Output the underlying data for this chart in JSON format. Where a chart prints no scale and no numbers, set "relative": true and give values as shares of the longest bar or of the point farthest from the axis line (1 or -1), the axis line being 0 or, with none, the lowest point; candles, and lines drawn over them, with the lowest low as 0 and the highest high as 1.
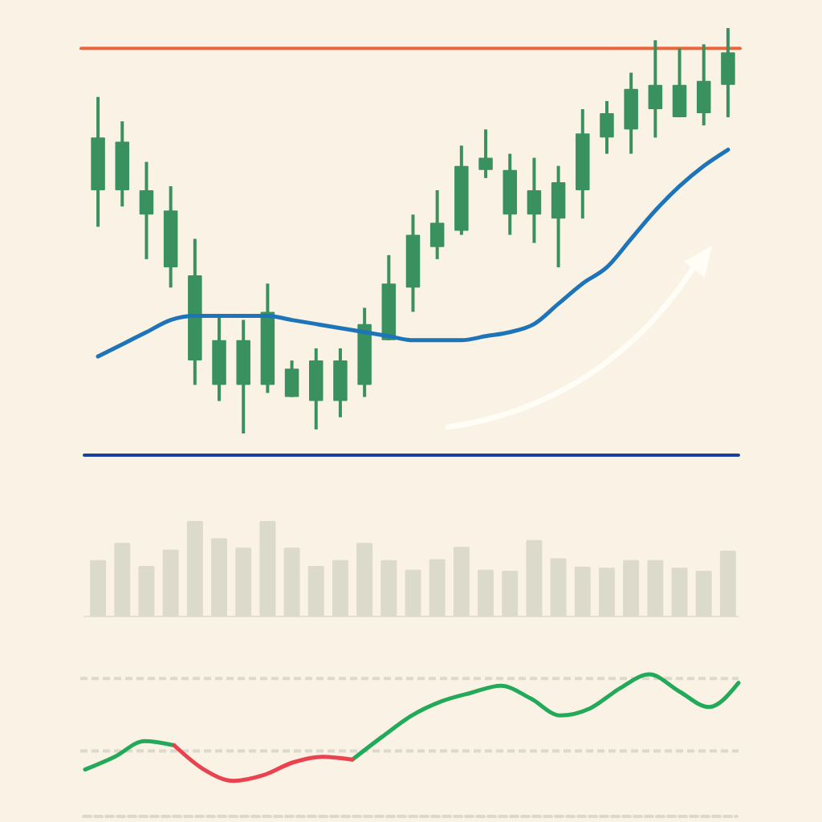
{
  "chart_data": [
    {
      "type": "candlestick",
      "relative": true,
      "color": "#3a9160",
      "categories": [
        null,
        null,
        null,
        null,
        null,
        null,
        null,
        null,
        null,
        null,
        null,
        null,
        null,
        null,
        null,
        null,
        null,
        null,
        null,
        null,
        null,
        null,
        null,
        null,
        null,
        null,
        null
      ],
      "ohlc": [
        [
          0.6,
          0.83,
          0.51,
          0.73
        ],
        [
          0.6,
          0.77,
          0.56,
          0.72
        ],
        [
          0.54,
          0.67,
          0.43,
          0.6
        ],
        [
          0.41,
          0.61,
          0.36,
          0.55
        ],
        [
          0.18,
          0.48,
          0.12,
          0.39
        ],
        [
          0.12,
          0.29,
          0.08,
          0.23
        ],
        [
          0.12,
          0.28,
          0.0,
          0.23
        ],
        [
          0.12,
          0.37,
          0.1,
          0.3
        ],
        [
          0.09,
          0.18,
          0.09,
          0.16
        ],
        [
          0.08,
          0.21,
          0.01,
          0.18
        ],
        [
          0.08,
          0.21,
          0.04,
          0.18
        ],
        [
          0.12,
          0.31,
          0.09,
          0.27
        ],
        [
          0.23,
          0.44,
          0.23,
          0.37
        ],
        [
          0.36,
          0.54,
          0.3,
          0.49
        ],
        [
          0.46,
          0.6,
          0.43,
          0.52
        ],
        [
          0.5,
          0.71,
          0.49,
          0.66
        ],
        [
          0.65,
          0.75,
          0.63,
          0.68
        ],
        [
          0.54,
          0.69,
          0.49,
          0.65
        ],
        [
          0.54,
          0.68,
          0.47,
          0.6
        ],
        [
          0.53,
          0.66,
          0.41,
          0.62
        ],
        [
          0.6,
          0.8,
          0.53,
          0.74
        ],
        [
          0.73,
          0.82,
          0.69,
          0.79
        ],
        [
          0.75,
          0.89,
          0.69,
          0.85
        ],
        [
          0.8,
          0.97,
          0.73,
          0.86
        ],
        [
          0.78,
          0.95,
          0.78,
          0.86
        ],
        [
          0.79,
          0.96,
          0.76,
          0.87
        ],
        [
          0.86,
          1,
          0.78,
          0.94
        ]
      ],
      "series": [
        {
          "type": "line",
          "color": "#1e74b8",
          "values": [
            0.19,
            0.22,
            0.25,
            0.28,
            0.29,
            0.29,
            0.29,
            0.29,
            0.28,
            0.27,
            0.26,
            0.25,
            0.24,
            0.23,
            0.23,
            0.23,
            0.24,
            0.25,
            0.27,
            0.32,
            0.37,
            0.41,
            0.48,
            0.55,
            0.61,
            0.66,
            0.7
          ]
        }
      ],
      "ref_lines": [
        {
          "axis": "y",
          "value": 0.95,
          "color": "#f0643c"
        }
      ]
    },
    {
      "type": "bar",
      "relative": true,
      "color": "#dcdacb",
      "categories": [
        null,
        null,
        null,
        null,
        null,
        null,
        null,
        null,
        null,
        null,
        null,
        null,
        null,
        null,
        null,
        null,
        null,
        null,
        null,
        null,
        null,
        null,
        null,
        null,
        null,
        null,
        null
      ],
      "values": [
        0.59,
        0.77,
        0.53,
        0.7,
        1,
        0.82,
        0.72,
        1,
        0.72,
        0.53,
        0.59,
        0.77,
        0.59,
        0.49,
        0.6,
        0.73,
        0.49,
        0.48,
        0.8,
        0.61,
        0.52,
        0.51,
        0.59,
        0.59,
        0.51,
        0.48,
        0.69
      ]
    },
    {
      "type": "line",
      "relative": true,
      "categories": [
        null,
        null,
        null,
        null,
        null,
        null,
        null,
        null,
        null,
        null,
        null,
        null,
        null,
        null,
        null,
        null,
        null,
        null,
        null,
        null,
        null,
        null,
        null
      ],
      "series": [
        {
          "color": "#22a95a",
          "values": [
            0.33,
            0.42,
            0.53,
            0.5,
            null,
            null,
            null,
            null,
            null,
            0.4,
            0.56,
            0.71,
            0.81,
            0.87,
            0.92,
            0.83,
            0.71,
            0.76,
            0.9,
            1,
            0.88,
            0.77,
            0.94
          ]
        },
        {
          "color": "#e8434f",
          "values": [
            null,
            null,
            null,
            0.5,
            0.33,
            0.25,
            0.29,
            0.38,
            0.42,
            0.4,
            null,
            null,
            null,
            null,
            null,
            null,
            null,
            null,
            null,
            null,
            null,
            null,
            null
          ]
        }
      ],
      "ref_lines": [
        {
          "axis": "y",
          "value": 0.97,
          "color": "#dcd8cc",
          "line_style": "dashed"
        },
        {
          "axis": "y",
          "value": 0.46,
          "color": "#dcd8cc",
          "line_style": "dashed"
        }
      ]
    }
  ]
}
